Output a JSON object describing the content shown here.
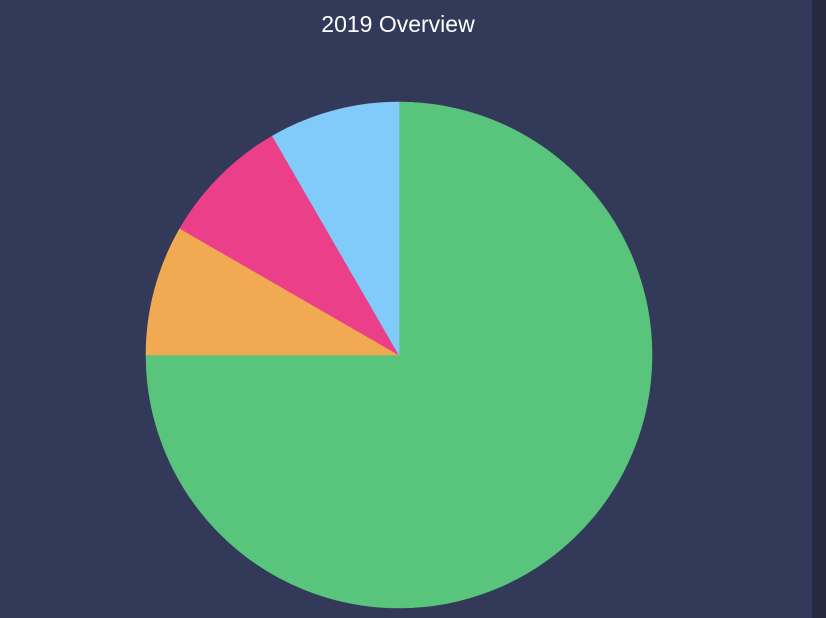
{
  "chart_data": {
    "type": "pie",
    "title": "2019 Overview",
    "slices": [
      {
        "value": 75,
        "color": "#59c47c"
      },
      {
        "value": 8.33,
        "color": "#f2aa52"
      },
      {
        "value": 8.33,
        "color": "#ec3f8a"
      },
      {
        "value": 8.34,
        "color": "#81cbfa"
      }
    ],
    "legend": false
  },
  "colors": {
    "background": "#333a59",
    "title_text": "#ffffff"
  }
}
